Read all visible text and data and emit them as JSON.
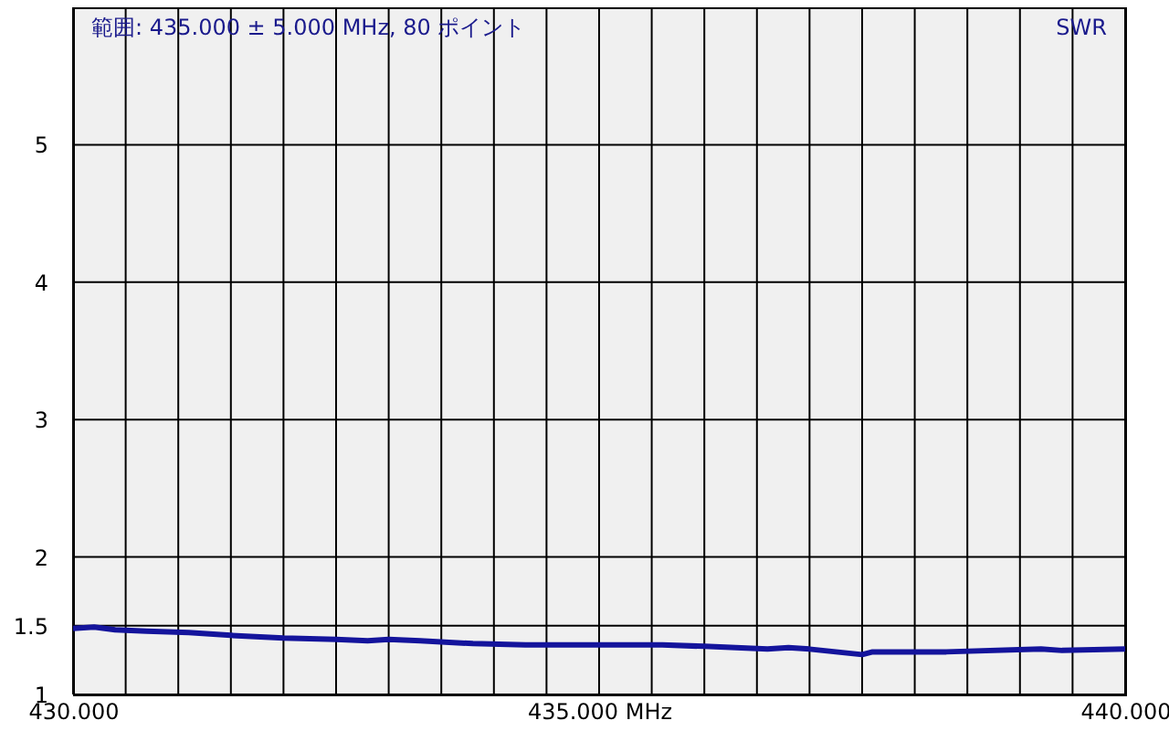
{
  "chart_data": {
    "type": "line",
    "title": "範囲: 435.000 ± 5.000 MHz, 80 ポイント",
    "ylabel": "SWR",
    "x": [
      430.0,
      430.2,
      430.4,
      430.7,
      431.1,
      431.5,
      432.0,
      432.5,
      432.8,
      433.0,
      433.3,
      433.8,
      434.3,
      434.9,
      435.3,
      435.6,
      436.0,
      436.6,
      436.8,
      437.0,
      437.5,
      437.6,
      438.3,
      439.2,
      439.4,
      440.0
    ],
    "series": [
      {
        "color": "#14149c",
        "values": [
          1.48,
          1.49,
          1.47,
          1.46,
          1.45,
          1.43,
          1.41,
          1.4,
          1.39,
          1.4,
          1.39,
          1.37,
          1.36,
          1.36,
          1.36,
          1.36,
          1.35,
          1.33,
          1.34,
          1.33,
          1.29,
          1.31,
          1.31,
          1.33,
          1.32,
          1.33
        ]
      }
    ],
    "xlim": [
      430,
      440
    ],
    "xticks": [
      {
        "value": 430,
        "label": "430.000"
      },
      {
        "value": 430.5,
        "label": null
      },
      {
        "value": 431,
        "label": null
      },
      {
        "value": 431.5,
        "label": null
      },
      {
        "value": 432,
        "label": null
      },
      {
        "value": 432.5,
        "label": null
      },
      {
        "value": 433,
        "label": null
      },
      {
        "value": 433.5,
        "label": null
      },
      {
        "value": 434,
        "label": null
      },
      {
        "value": 434.5,
        "label": null
      },
      {
        "value": 435,
        "label": "435.000 MHz"
      },
      {
        "value": 435.5,
        "label": null
      },
      {
        "value": 436,
        "label": null
      },
      {
        "value": 436.5,
        "label": null
      },
      {
        "value": 437,
        "label": null
      },
      {
        "value": 437.5,
        "label": null
      },
      {
        "value": 438,
        "label": null
      },
      {
        "value": 438.5,
        "label": null
      },
      {
        "value": 439,
        "label": null
      },
      {
        "value": 439.5,
        "label": null
      },
      {
        "value": 440,
        "label": "440.000"
      }
    ],
    "ylim": [
      1,
      6
    ],
    "yticks": [
      1,
      1.5,
      2,
      3,
      4,
      5
    ],
    "grid": true,
    "marker": "none",
    "line_style": "solid"
  }
}
